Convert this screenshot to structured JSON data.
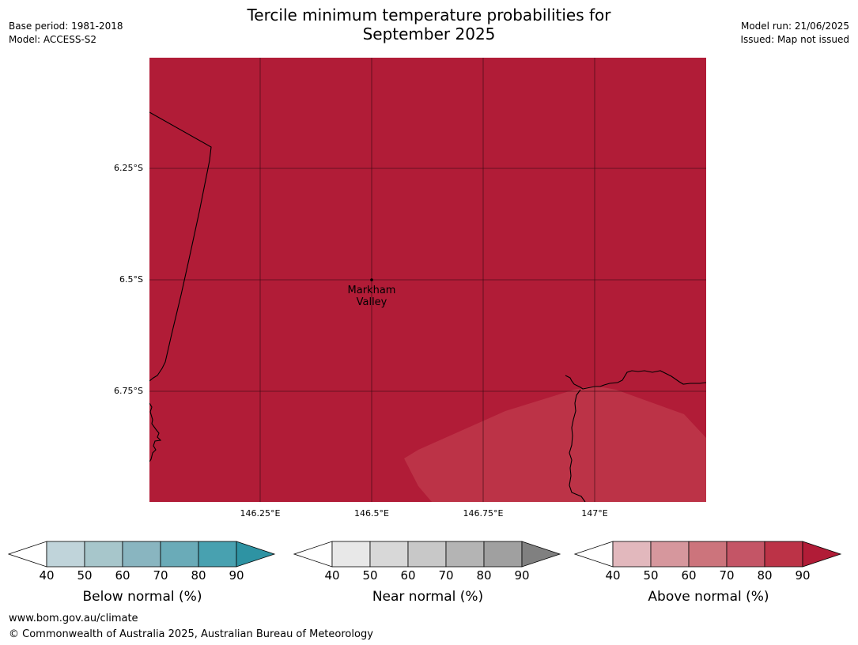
{
  "title_line1": "Tercile minimum temperature probabilities for",
  "title_line2": "September 2025",
  "meta_left": {
    "base_period": "Base period: 1981-2018",
    "model": "Model: ACCESS-S2"
  },
  "meta_right": {
    "model_run": "Model run: 21/06/2025",
    "issued": "Issued: Map not issued"
  },
  "map": {
    "lat_labels": [
      "6.25°S",
      "6.5°S",
      "6.75°S"
    ],
    "lon_labels": [
      "146.25°E",
      "146.5°E",
      "146.75°E",
      "147°E"
    ],
    "place": {
      "line1": "Markham",
      "line2": "Valley"
    },
    "fill_main": "#b11c37",
    "fill_lighter": "#bc3347"
  },
  "colorbars": [
    {
      "label": "Below normal (%)",
      "ticks": [
        "40",
        "50",
        "60",
        "70",
        "80",
        "90"
      ],
      "colors": [
        "#c0d4da",
        "#a7c6cb",
        "#89b5c0",
        "#6aabb8",
        "#48a1b0",
        "#2e93a3"
      ]
    },
    {
      "label": "Near normal (%)",
      "ticks": [
        "40",
        "50",
        "60",
        "70",
        "80",
        "90"
      ],
      "colors": [
        "#e8e8e8",
        "#d8d8d8",
        "#c8c8c8",
        "#b4b4b4",
        "#a0a0a0",
        "#808080"
      ]
    },
    {
      "label": "Above normal (%)",
      "ticks": [
        "40",
        "50",
        "60",
        "70",
        "80",
        "90"
      ],
      "colors": [
        "#e2b8bd",
        "#d6979d",
        "#cc747c",
        "#c45566",
        "#bc3347",
        "#b11c37"
      ]
    }
  ],
  "footer": {
    "url": "www.bom.gov.au/climate",
    "copyright": "© Commonwealth of Australia 2025, Australian Bureau of Meteorology"
  }
}
